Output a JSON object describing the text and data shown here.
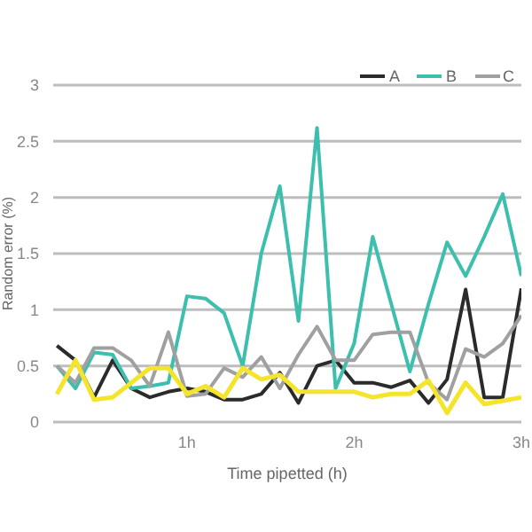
{
  "chart_data": {
    "type": "line",
    "xlabel": "Time pipetted (h)",
    "ylabel": "Random error (%)",
    "x": [
      0.2222,
      0.3333,
      0.4444,
      0.5556,
      0.6667,
      0.7778,
      0.8889,
      1,
      1.1111,
      1.2222,
      1.3333,
      1.4444,
      1.5556,
      1.6667,
      1.7778,
      1.8889,
      2,
      2.1111,
      2.2222,
      2.3333,
      2.4444,
      2.5556,
      2.6667,
      2.7778,
      2.8889,
      3
    ],
    "series": [
      {
        "name": "A",
        "color": "#2b2b2b",
        "values": [
          0.68,
          0.55,
          0.22,
          0.55,
          0.3,
          0.22,
          0.27,
          0.3,
          0.27,
          0.2,
          0.2,
          0.25,
          0.44,
          0.17,
          0.5,
          0.55,
          0.35,
          0.35,
          0.31,
          0.37,
          0.17,
          0.38,
          1.18,
          0.22,
          0.22,
          1.19
        ]
      },
      {
        "name": "B",
        "color": "#3dbfad",
        "values": [
          0.5,
          0.3,
          0.62,
          0.6,
          0.3,
          0.32,
          0.35,
          1.12,
          1.1,
          0.97,
          0.5,
          1.5,
          2.1,
          0.9,
          2.62,
          0.3,
          0.7,
          1.65,
          1.05,
          0.45,
          1.05,
          1.6,
          1.3,
          1.65,
          2.03,
          1.3
        ]
      },
      {
        "name": "C",
        "color": "#a0a0a0",
        "values": [
          0.5,
          0.35,
          0.66,
          0.66,
          0.55,
          0.32,
          0.8,
          0.23,
          0.25,
          0.48,
          0.4,
          0.58,
          0.3,
          0.6,
          0.85,
          0.55,
          0.55,
          0.78,
          0.8,
          0.8,
          0.35,
          0.2,
          0.65,
          0.58,
          0.7,
          0.95
        ]
      },
      {
        "color": "#f5e52a",
        "values": [
          0.25,
          0.55,
          0.2,
          0.22,
          0.35,
          0.48,
          0.48,
          0.25,
          0.32,
          0.22,
          0.48,
          0.38,
          0.42,
          0.27,
          0.27,
          0.27,
          0.27,
          0.22,
          0.25,
          0.25,
          0.37,
          0.08,
          0.35,
          0.16,
          0.19,
          0.22
        ]
      }
    ],
    "xlim": [
      0.2,
      3
    ],
    "xticks": [
      {
        "value": 1,
        "label": "1h"
      },
      {
        "value": 2,
        "label": "2h"
      },
      {
        "value": 3,
        "label": "3h"
      }
    ],
    "ylim": [
      0,
      3
    ],
    "yticks": [
      0,
      0.5,
      1,
      1.5,
      2,
      2.5,
      3
    ],
    "grid": "y",
    "legend": "top right",
    "marker": "none",
    "line_style": "solid"
  }
}
